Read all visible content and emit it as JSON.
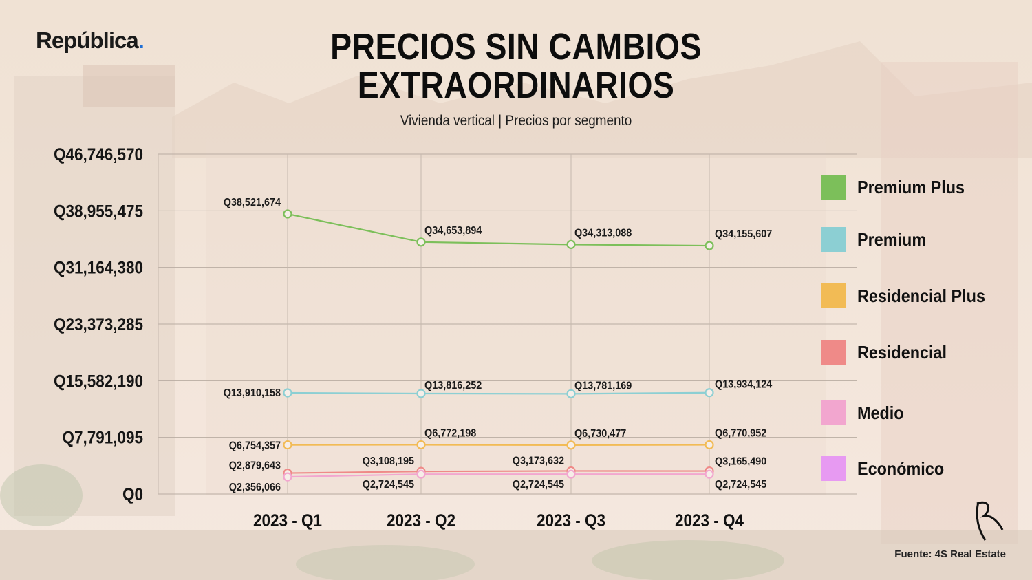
{
  "brand": {
    "name": "República",
    "dot": "."
  },
  "header": {
    "title_line1": "PRECIOS SIN CAMBIOS",
    "title_line2": "EXTRAORDINARIOS",
    "subtitle": "Vivienda vertical | Precios por segmento"
  },
  "footer": {
    "source": "Fuente: 4S Real Estate"
  },
  "chart_data": {
    "type": "line",
    "title": "PRECIOS SIN CAMBIOS EXTRAORDINARIOS",
    "subtitle": "Vivienda vertical | Precios por segmento",
    "categories": [
      "2023 - Q1",
      "2023 - Q2",
      "2023 - Q3",
      "2023 - Q4"
    ],
    "ylim": [
      0,
      46746570
    ],
    "yticks": [
      0,
      7791095,
      15582190,
      23373285,
      31164380,
      38955475,
      46746570
    ],
    "ytick_labels": [
      "Q0",
      "Q7,791,095",
      "Q15,582,190",
      "Q23,373,285",
      "Q31,164,380",
      "Q38,955,475",
      "Q46,746,570"
    ],
    "grid": true,
    "legend_position": "right",
    "series": [
      {
        "name": "Premium Plus",
        "color": "#7cbf5a",
        "values": [
          38521674,
          34653894,
          34313088,
          34155607
        ],
        "labels": [
          "Q38,521,674",
          "Q34,653,894",
          "Q34,313,088",
          "Q34,155,607"
        ],
        "label_pos": "above"
      },
      {
        "name": "Premium",
        "color": "#8ccfd3",
        "values": [
          13910158,
          13816252,
          13781169,
          13934124
        ],
        "labels": [
          "Q13,910,158",
          "Q13,816,252",
          "Q13,781,169",
          "Q13,934,124"
        ],
        "label_pos": "mixed_a"
      },
      {
        "name": "Residencial Plus",
        "color": "#f2bb55",
        "values": [
          6754357,
          6772198,
          6730477,
          6770952
        ],
        "labels": [
          "Q6,754,357",
          "Q6,772,198",
          "Q6,730,477",
          "Q6,770,952"
        ],
        "label_pos": "mixed_a"
      },
      {
        "name": "Residencial",
        "color": "#ef8a88",
        "values": [
          2879643,
          3108195,
          3173632,
          3165490
        ],
        "labels": [
          "Q2,879,643",
          "Q3,108,195",
          "Q3,173,632",
          "Q3,165,490"
        ],
        "label_pos": "mixed_a"
      },
      {
        "name": "Medio",
        "color": "#f2a6cf",
        "values": [
          2356066,
          2724545,
          2724545,
          2724545
        ],
        "labels": [
          "Q2,356,066",
          "Q2,724,545",
          "Q2,724,545",
          "Q2,724,545"
        ],
        "label_pos": "below"
      },
      {
        "name": "Económico",
        "color": "#e79af2",
        "values": [
          null,
          null,
          null,
          null
        ],
        "labels": []
      }
    ]
  }
}
